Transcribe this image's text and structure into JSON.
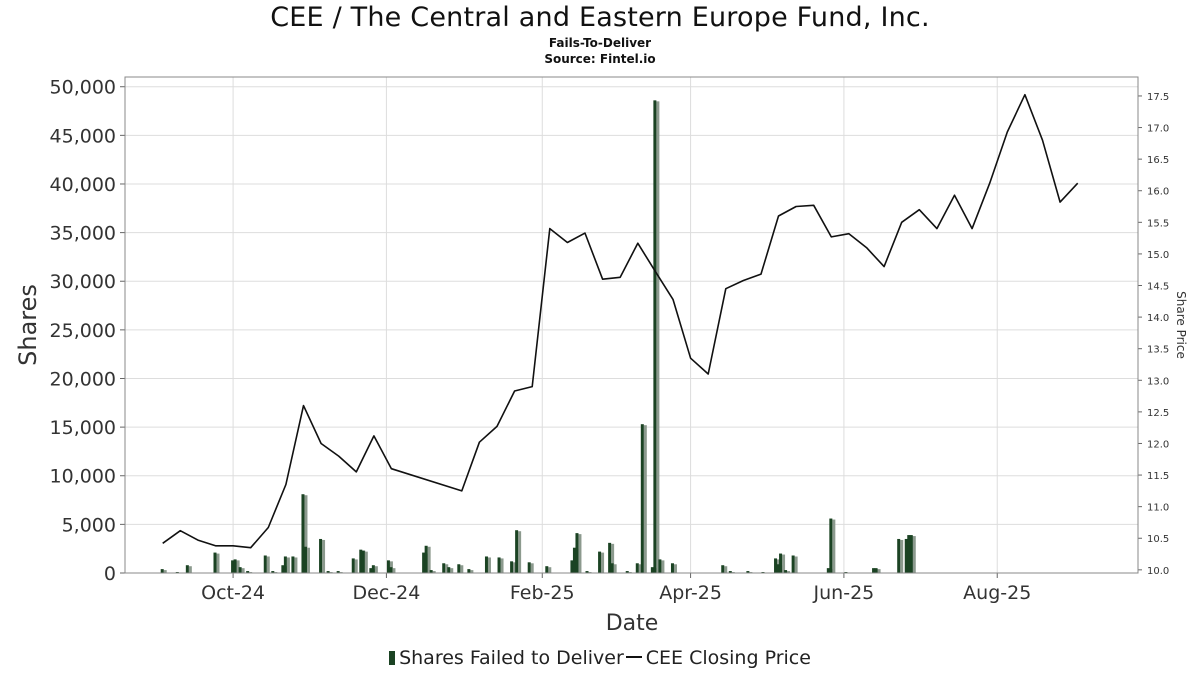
{
  "header": {
    "title": "CEE / The Central and Eastern Europe Fund, Inc.",
    "subtitle": "Fails-To-Deliver",
    "source": "Source: Fintel.io"
  },
  "legend": {
    "bars_label": "Shares Failed to Deliver",
    "line_label": "CEE Closing Price"
  },
  "colors": {
    "bar_dark": "#1b4323",
    "bar_light": "#8c9a8e",
    "line": "#111111",
    "grid": "#dddddd"
  },
  "chart_data": {
    "type": "bar",
    "title": "CEE / The Central and Eastern Europe Fund, Inc.",
    "subtitle": "Fails-To-Deliver",
    "xlabel": "Date",
    "ylabel": "Shares",
    "y2label": "Share Price",
    "ylim": [
      0,
      51000
    ],
    "y2lim": [
      9.95,
      17.8
    ],
    "y_ticks": [
      "0",
      "5,000",
      "10,000",
      "15,000",
      "20,000",
      "25,000",
      "30,000",
      "35,000",
      "40,000",
      "45,000",
      "50,000"
    ],
    "y2_ticks": [
      "10.0",
      "10.5",
      "11.0",
      "11.5",
      "12.0",
      "12.5",
      "13.0",
      "13.5",
      "14.0",
      "14.5",
      "15.0",
      "15.5",
      "16.0",
      "16.5",
      "17.0",
      "17.5"
    ],
    "x_ticks": [
      {
        "label": "Oct-24",
        "date": "2024-10-01"
      },
      {
        "label": "Dec-24",
        "date": "2024-12-01"
      },
      {
        "label": "Feb-25",
        "date": "2025-02-01"
      },
      {
        "label": "Apr-25",
        "date": "2025-04-01"
      },
      {
        "label": "Jun-25",
        "date": "2025-06-01"
      },
      {
        "label": "Aug-25",
        "date": "2025-08-01"
      }
    ],
    "x_range": [
      "2024-08-19",
      "2025-09-26"
    ],
    "grid": true,
    "legend_position": "bottom",
    "series": [
      {
        "name": "Shares Failed to Deliver",
        "type": "bar",
        "points": [
          {
            "date": "2024-09-03",
            "value": 400
          },
          {
            "date": "2024-09-09",
            "value": 100
          },
          {
            "date": "2024-09-13",
            "value": 800
          },
          {
            "date": "2024-09-24",
            "value": 2100
          },
          {
            "date": "2024-10-01",
            "value": 1300
          },
          {
            "date": "2024-10-02",
            "value": 1400
          },
          {
            "date": "2024-10-04",
            "value": 600
          },
          {
            "date": "2024-10-07",
            "value": 200
          },
          {
            "date": "2024-10-14",
            "value": 1800
          },
          {
            "date": "2024-10-17",
            "value": 200
          },
          {
            "date": "2024-10-21",
            "value": 800
          },
          {
            "date": "2024-10-22",
            "value": 1700
          },
          {
            "date": "2024-10-25",
            "value": 1700
          },
          {
            "date": "2024-10-29",
            "value": 8100
          },
          {
            "date": "2024-10-30",
            "value": 2700
          },
          {
            "date": "2024-11-05",
            "value": 3500
          },
          {
            "date": "2024-11-08",
            "value": 200
          },
          {
            "date": "2024-11-12",
            "value": 200
          },
          {
            "date": "2024-11-18",
            "value": 1500
          },
          {
            "date": "2024-11-21",
            "value": 2400
          },
          {
            "date": "2024-11-22",
            "value": 2300
          },
          {
            "date": "2024-11-25",
            "value": 500
          },
          {
            "date": "2024-11-26",
            "value": 800
          },
          {
            "date": "2024-12-02",
            "value": 1300
          },
          {
            "date": "2024-12-03",
            "value": 600
          },
          {
            "date": "2024-12-16",
            "value": 2100
          },
          {
            "date": "2024-12-17",
            "value": 2800
          },
          {
            "date": "2024-12-19",
            "value": 300
          },
          {
            "date": "2024-12-24",
            "value": 1000
          },
          {
            "date": "2024-12-26",
            "value": 600
          },
          {
            "date": "2024-12-30",
            "value": 900
          },
          {
            "date": "2025-01-03",
            "value": 400
          },
          {
            "date": "2025-01-10",
            "value": 1700
          },
          {
            "date": "2025-01-15",
            "value": 1600
          },
          {
            "date": "2025-01-20",
            "value": 1200
          },
          {
            "date": "2025-01-22",
            "value": 4400
          },
          {
            "date": "2025-01-27",
            "value": 1100
          },
          {
            "date": "2025-02-03",
            "value": 700
          },
          {
            "date": "2025-02-13",
            "value": 1300
          },
          {
            "date": "2025-02-14",
            "value": 2600
          },
          {
            "date": "2025-02-15",
            "value": 4100
          },
          {
            "date": "2025-02-19",
            "value": 200
          },
          {
            "date": "2025-02-24",
            "value": 2200
          },
          {
            "date": "2025-02-28",
            "value": 3100
          },
          {
            "date": "2025-03-01",
            "value": 1000
          },
          {
            "date": "2025-03-07",
            "value": 200
          },
          {
            "date": "2025-03-11",
            "value": 1000
          },
          {
            "date": "2025-03-13",
            "value": 15300
          },
          {
            "date": "2025-03-17",
            "value": 600
          },
          {
            "date": "2025-03-18",
            "value": 48600
          },
          {
            "date": "2025-03-20",
            "value": 1400
          },
          {
            "date": "2025-03-25",
            "value": 1000
          },
          {
            "date": "2025-04-14",
            "value": 800
          },
          {
            "date": "2025-04-17",
            "value": 200
          },
          {
            "date": "2025-04-24",
            "value": 200
          },
          {
            "date": "2025-04-30",
            "value": 100
          },
          {
            "date": "2025-05-05",
            "value": 1500
          },
          {
            "date": "2025-05-06",
            "value": 900
          },
          {
            "date": "2025-05-07",
            "value": 2000
          },
          {
            "date": "2025-05-09",
            "value": 300
          },
          {
            "date": "2025-05-12",
            "value": 1800
          },
          {
            "date": "2025-05-26",
            "value": 500
          },
          {
            "date": "2025-05-27",
            "value": 5600
          },
          {
            "date": "2025-06-02",
            "value": 100
          },
          {
            "date": "2025-06-13",
            "value": 500
          },
          {
            "date": "2025-06-14",
            "value": 500
          },
          {
            "date": "2025-06-23",
            "value": 3500
          },
          {
            "date": "2025-06-26",
            "value": 3500
          },
          {
            "date": "2025-06-27",
            "value": 3900
          },
          {
            "date": "2025-06-28",
            "value": 3900
          }
        ]
      },
      {
        "name": "CEE Closing Price",
        "type": "line",
        "points": [
          {
            "date": "2024-09-03",
            "value": 10.42
          },
          {
            "date": "2024-09-10",
            "value": 10.62
          },
          {
            "date": "2024-09-17",
            "value": 10.47
          },
          {
            "date": "2024-09-24",
            "value": 10.38
          },
          {
            "date": "2024-10-01",
            "value": 10.38
          },
          {
            "date": "2024-10-08",
            "value": 10.35
          },
          {
            "date": "2024-10-15",
            "value": 10.67
          },
          {
            "date": "2024-10-22",
            "value": 11.35
          },
          {
            "date": "2024-10-29",
            "value": 12.6
          },
          {
            "date": "2024-11-05",
            "value": 12.0
          },
          {
            "date": "2024-11-12",
            "value": 11.8
          },
          {
            "date": "2024-11-19",
            "value": 11.55
          },
          {
            "date": "2024-11-26",
            "value": 12.12
          },
          {
            "date": "2024-12-03",
            "value": 11.6
          },
          {
            "date": "2024-12-31",
            "value": 11.25
          },
          {
            "date": "2025-01-07",
            "value": 12.02
          },
          {
            "date": "2025-01-14",
            "value": 12.27
          },
          {
            "date": "2025-01-21",
            "value": 12.83
          },
          {
            "date": "2025-01-28",
            "value": 12.9
          },
          {
            "date": "2025-02-04",
            "value": 15.4
          },
          {
            "date": "2025-02-11",
            "value": 15.18
          },
          {
            "date": "2025-02-18",
            "value": 15.33
          },
          {
            "date": "2025-02-25",
            "value": 14.6
          },
          {
            "date": "2025-03-04",
            "value": 14.63
          },
          {
            "date": "2025-03-11",
            "value": 15.17
          },
          {
            "date": "2025-03-18",
            "value": 14.72
          },
          {
            "date": "2025-03-25",
            "value": 14.28
          },
          {
            "date": "2025-04-01",
            "value": 13.35
          },
          {
            "date": "2025-04-08",
            "value": 13.1
          },
          {
            "date": "2025-04-15",
            "value": 14.45
          },
          {
            "date": "2025-04-22",
            "value": 14.58
          },
          {
            "date": "2025-04-29",
            "value": 14.68
          },
          {
            "date": "2025-05-06",
            "value": 15.6
          },
          {
            "date": "2025-05-13",
            "value": 15.75
          },
          {
            "date": "2025-05-20",
            "value": 15.77
          },
          {
            "date": "2025-05-27",
            "value": 15.27
          },
          {
            "date": "2025-06-03",
            "value": 15.32
          },
          {
            "date": "2025-06-10",
            "value": 15.1
          },
          {
            "date": "2025-06-17",
            "value": 14.8
          },
          {
            "date": "2025-06-24",
            "value": 15.5
          },
          {
            "date": "2025-07-01",
            "value": 15.7
          },
          {
            "date": "2025-07-08",
            "value": 15.4
          },
          {
            "date": "2025-07-15",
            "value": 15.93
          },
          {
            "date": "2025-07-22",
            "value": 15.4
          },
          {
            "date": "2025-07-29",
            "value": 16.12
          },
          {
            "date": "2025-08-05",
            "value": 16.93
          },
          {
            "date": "2025-08-12",
            "value": 17.52
          },
          {
            "date": "2025-08-19",
            "value": 16.8
          },
          {
            "date": "2025-08-26",
            "value": 15.82
          },
          {
            "date": "2025-09-02",
            "value": 16.12
          }
        ]
      }
    ]
  }
}
